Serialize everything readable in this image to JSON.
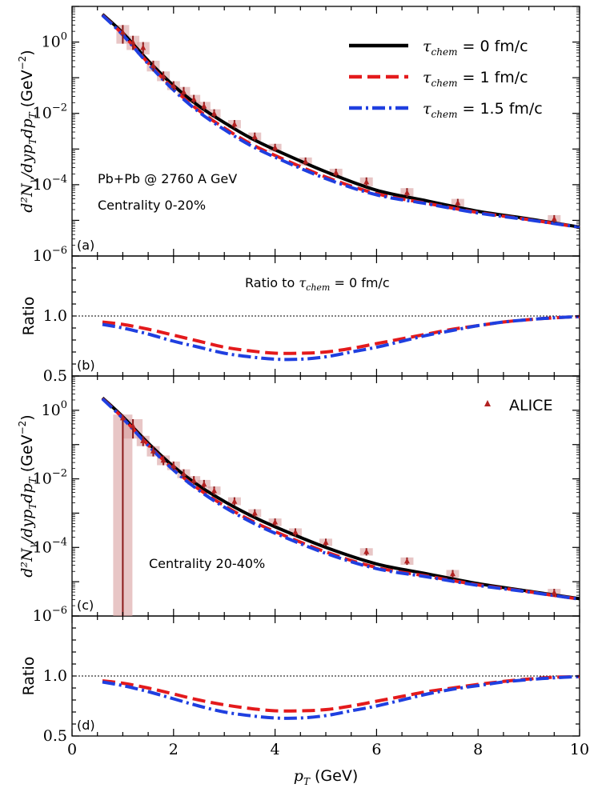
{
  "chart_data": [
    {
      "panel": "(a)",
      "type": "line",
      "yscale": "log",
      "xlim": [
        0,
        10
      ],
      "ylim_exp": [
        -6,
        1
      ],
      "ytick_labels": [
        "10^-6",
        "10^-4",
        "10^-2",
        "10^0"
      ],
      "ylabel": "d²N_γ/dy p_T dp_T (GeV⁻²)",
      "annotations": [
        "Pb+Pb @ 2760 A GeV",
        "Centrality 0-20%"
      ],
      "series": [
        {
          "name": "τchem = 0 fm/c",
          "color": "#000000",
          "style": "solid",
          "x": [
            0.6,
            1,
            1.5,
            2,
            2.5,
            3,
            3.5,
            4,
            5,
            6,
            7,
            8,
            9,
            10
          ],
          "y": [
            6.0,
            1.8,
            0.3,
            0.06,
            0.016,
            0.0055,
            0.0021,
            0.00095,
            0.00023,
            7e-05,
            3.5e-05,
            1.8e-05,
            1.1e-05,
            6.5e-06
          ]
        },
        {
          "name": "τchem = 1 fm/c",
          "color": "#e41a1c",
          "style": "dashed",
          "x": [
            0.6,
            1,
            1.5,
            2,
            2.5,
            3,
            3.5,
            4,
            5,
            6,
            7,
            8,
            9,
            10
          ],
          "y": [
            5.7,
            1.65,
            0.26,
            0.049,
            0.012,
            0.0039,
            0.00145,
            0.00066,
            0.000164,
            5.6e-05,
            3e-05,
            1.65e-05,
            1.05e-05,
            6.4e-06
          ]
        },
        {
          "name": "τchem = 1.5 fm/c",
          "color": "#1f3fe0",
          "style": "dashdot",
          "x": [
            0.6,
            1,
            1.5,
            2,
            2.5,
            3,
            3.5,
            4,
            5,
            6,
            7,
            8,
            9,
            10
          ],
          "y": [
            5.6,
            1.58,
            0.245,
            0.045,
            0.0109,
            0.0035,
            0.0013,
            0.00059,
            0.000148,
            5.2e-05,
            2.9e-05,
            1.6e-05,
            1.03e-05,
            6.4e-06
          ]
        }
      ],
      "points": [
        {
          "x": 1.0,
          "y": 1.9,
          "lo": 0.9,
          "hi": 3.0
        },
        {
          "x": 1.2,
          "y": 1.0,
          "lo": 0.6,
          "hi": 1.5
        },
        {
          "x": 1.4,
          "y": 0.7,
          "lo": 0.45,
          "hi": 1.0
        },
        {
          "x": 1.6,
          "y": 0.22,
          "lo": 0.15,
          "hi": 0.3
        },
        {
          "x": 1.8,
          "y": 0.11,
          "lo": 0.08,
          "hi": 0.15
        },
        {
          "x": 2.0,
          "y": 0.06,
          "lo": 0.045,
          "hi": 0.08
        },
        {
          "x": 2.2,
          "y": 0.04,
          "lo": 0.03,
          "hi": 0.055
        },
        {
          "x": 2.4,
          "y": 0.025,
          "lo": 0.019,
          "hi": 0.033
        },
        {
          "x": 2.6,
          "y": 0.016,
          "lo": 0.012,
          "hi": 0.021
        },
        {
          "x": 2.8,
          "y": 0.01,
          "lo": 0.0075,
          "hi": 0.013
        },
        {
          "x": 3.2,
          "y": 0.005,
          "lo": 0.0038,
          "hi": 0.0065
        },
        {
          "x": 3.6,
          "y": 0.0022,
          "lo": 0.0017,
          "hi": 0.0029
        },
        {
          "x": 4.0,
          "y": 0.0011,
          "lo": 0.00085,
          "hi": 0.0014
        },
        {
          "x": 4.6,
          "y": 0.00045,
          "lo": 0.00035,
          "hi": 0.00058
        },
        {
          "x": 5.2,
          "y": 0.00022,
          "lo": 0.00017,
          "hi": 0.00028
        },
        {
          "x": 5.8,
          "y": 0.00012,
          "lo": 9e-05,
          "hi": 0.00016
        },
        {
          "x": 6.6,
          "y": 6e-05,
          "lo": 4.5e-05,
          "hi": 8e-05
        },
        {
          "x": 7.6,
          "y": 3.1e-05,
          "lo": 2.4e-05,
          "hi": 4e-05
        },
        {
          "x": 9.5,
          "y": 1.1e-05,
          "lo": 8.5e-06,
          "hi": 1.4e-05
        }
      ]
    },
    {
      "panel": "(b)",
      "type": "line",
      "yscale": "linear",
      "xlim": [
        0,
        10
      ],
      "ylim": [
        0.5,
        1.5
      ],
      "ytick_labels": [
        "0.5",
        "1.0"
      ],
      "ylabel": "Ratio",
      "annotations": [
        "Ratio to τchem = 0 fm/c"
      ],
      "reference_line": 1.0,
      "series": [
        {
          "name": "τchem = 1 fm/c",
          "color": "#e41a1c",
          "style": "dashed",
          "x": [
            0.6,
            1,
            1.5,
            2,
            2.5,
            3,
            3.5,
            4,
            4.5,
            5,
            5.5,
            6,
            6.5,
            7,
            7.5,
            8,
            8.5,
            9,
            9.5,
            10
          ],
          "y": [
            0.95,
            0.93,
            0.89,
            0.84,
            0.79,
            0.74,
            0.71,
            0.69,
            0.69,
            0.7,
            0.73,
            0.77,
            0.81,
            0.85,
            0.89,
            0.92,
            0.95,
            0.97,
            0.985,
            0.995
          ]
        },
        {
          "name": "τchem = 1.5 fm/c",
          "color": "#1f3fe0",
          "style": "dashdot",
          "x": [
            0.6,
            1,
            1.5,
            2,
            2.5,
            3,
            3.5,
            4,
            4.5,
            5,
            5.5,
            6,
            6.5,
            7,
            7.5,
            8,
            8.5,
            9,
            9.5,
            10
          ],
          "y": [
            0.93,
            0.9,
            0.85,
            0.79,
            0.74,
            0.69,
            0.66,
            0.64,
            0.64,
            0.66,
            0.7,
            0.74,
            0.79,
            0.84,
            0.88,
            0.92,
            0.95,
            0.97,
            0.985,
            0.995
          ]
        }
      ]
    },
    {
      "panel": "(c)",
      "type": "line",
      "yscale": "log",
      "xlim": [
        0,
        10
      ],
      "ylim_exp": [
        -6,
        1
      ],
      "ytick_labels": [
        "10^-6",
        "10^-4",
        "10^-2",
        "10^0"
      ],
      "ylabel": "d²N_γ/dy p_T dp_T (GeV⁻²)",
      "annotations": [
        "Centrality 20-40%"
      ],
      "series": [
        {
          "name": "τchem = 0 fm/c",
          "color": "#000000",
          "style": "solid",
          "x": [
            0.6,
            1,
            1.5,
            2,
            2.5,
            3,
            3.5,
            4,
            5,
            6,
            7,
            8,
            9,
            10
          ],
          "y": [
            2.3,
            0.65,
            0.11,
            0.023,
            0.0063,
            0.0022,
            0.00088,
            0.0004,
            0.0001,
            3.3e-05,
            1.7e-05,
            8.8e-06,
            5.3e-06,
            3.2e-06
          ]
        },
        {
          "name": "τchem = 1 fm/c",
          "color": "#e41a1c",
          "style": "dashed",
          "x": [
            0.6,
            1,
            1.5,
            2,
            2.5,
            3,
            3.5,
            4,
            5,
            6,
            7,
            8,
            9,
            10
          ],
          "y": [
            2.2,
            0.6,
            0.098,
            0.019,
            0.005,
            0.00165,
            0.00064,
            0.00029,
            7.4e-05,
            2.6e-05,
            1.45e-05,
            8.1e-06,
            5.1e-06,
            3.1e-06
          ]
        },
        {
          "name": "τchem = 1.5 fm/c",
          "color": "#1f3fe0",
          "style": "dashdot",
          "x": [
            0.6,
            1,
            1.5,
            2,
            2.5,
            3,
            3.5,
            4,
            5,
            6,
            7,
            8,
            9,
            10
          ],
          "y": [
            2.15,
            0.58,
            0.094,
            0.018,
            0.0046,
            0.0015,
            0.00058,
            0.00026,
            6.7e-05,
            2.4e-05,
            1.38e-05,
            7.8e-06,
            5e-06,
            3.1e-06
          ]
        }
      ],
      "legend_marker": "ALICE",
      "points": [
        {
          "x": 1.0,
          "y": 0.6,
          "lo": 5e-07,
          "hi": 0.75
        },
        {
          "x": 1.2,
          "y": 0.35,
          "lo": 0.15,
          "hi": 0.55
        },
        {
          "x": 1.4,
          "y": 0.13,
          "lo": 0.09,
          "hi": 0.18
        },
        {
          "x": 1.6,
          "y": 0.065,
          "lo": 0.045,
          "hi": 0.09
        },
        {
          "x": 1.8,
          "y": 0.035,
          "lo": 0.025,
          "hi": 0.048
        },
        {
          "x": 2.0,
          "y": 0.024,
          "lo": 0.018,
          "hi": 0.032
        },
        {
          "x": 2.2,
          "y": 0.014,
          "lo": 0.0105,
          "hi": 0.019
        },
        {
          "x": 2.4,
          "y": 0.009,
          "lo": 0.0068,
          "hi": 0.012
        },
        {
          "x": 2.6,
          "y": 0.007,
          "lo": 0.0053,
          "hi": 0.0093
        },
        {
          "x": 2.8,
          "y": 0.0045,
          "lo": 0.0034,
          "hi": 0.006
        },
        {
          "x": 3.2,
          "y": 0.0022,
          "lo": 0.0017,
          "hi": 0.0029
        },
        {
          "x": 3.6,
          "y": 0.001,
          "lo": 0.00077,
          "hi": 0.0013
        },
        {
          "x": 4.0,
          "y": 0.00055,
          "lo": 0.00042,
          "hi": 0.0007
        },
        {
          "x": 4.4,
          "y": 0.00028,
          "lo": 0.00021,
          "hi": 0.00036
        },
        {
          "x": 5.0,
          "y": 0.00014,
          "lo": 0.00011,
          "hi": 0.00018
        },
        {
          "x": 5.8,
          "y": 7.5e-05,
          "lo": 5.8e-05,
          "hi": 9.5e-05
        },
        {
          "x": 6.6,
          "y": 4e-05,
          "lo": 3.1e-05,
          "hi": 5.1e-05
        },
        {
          "x": 7.5,
          "y": 1.7e-05,
          "lo": 1.3e-05,
          "hi": 2.2e-05
        },
        {
          "x": 9.5,
          "y": 4.8e-06,
          "lo": 3.7e-06,
          "hi": 6.2e-06
        }
      ]
    },
    {
      "panel": "(d)",
      "type": "line",
      "yscale": "linear",
      "xlim": [
        0,
        10
      ],
      "ylim": [
        0.5,
        1.5
      ],
      "ytick_labels": [
        "0.5",
        "1.0"
      ],
      "ylabel": "Ratio",
      "reference_line": 1.0,
      "xlabel": "p_T (GeV)",
      "xtick_labels": [
        "0",
        "2",
        "4",
        "6",
        "8",
        "10"
      ],
      "series": [
        {
          "name": "τchem = 1 fm/c",
          "color": "#e41a1c",
          "style": "dashed",
          "x": [
            0.6,
            1,
            1.5,
            2,
            2.5,
            3,
            3.5,
            4,
            4.5,
            5,
            5.5,
            6,
            6.5,
            7,
            7.5,
            8,
            8.5,
            9,
            9.5,
            10
          ],
          "y": [
            0.96,
            0.94,
            0.9,
            0.85,
            0.8,
            0.76,
            0.73,
            0.71,
            0.71,
            0.72,
            0.75,
            0.79,
            0.83,
            0.87,
            0.9,
            0.93,
            0.955,
            0.975,
            0.99,
            0.995
          ]
        },
        {
          "name": "τchem = 1.5 fm/c",
          "color": "#1f3fe0",
          "style": "dashdot",
          "x": [
            0.6,
            1,
            1.5,
            2,
            2.5,
            3,
            3.5,
            4,
            4.5,
            5,
            5.5,
            6,
            6.5,
            7,
            7.5,
            8,
            8.5,
            9,
            9.5,
            10
          ],
          "y": [
            0.95,
            0.92,
            0.87,
            0.81,
            0.75,
            0.7,
            0.67,
            0.65,
            0.65,
            0.67,
            0.71,
            0.75,
            0.8,
            0.85,
            0.89,
            0.92,
            0.95,
            0.97,
            0.985,
            0.995
          ]
        }
      ]
    }
  ],
  "legend": {
    "entries": [
      {
        "label_math": "τ",
        "label_sub": "chem",
        "label_rest": " = 0 fm/c",
        "color": "#000000",
        "style": "solid"
      },
      {
        "label_math": "τ",
        "label_sub": "chem",
        "label_rest": " = 1 fm/c",
        "color": "#e41a1c",
        "style": "dashed"
      },
      {
        "label_math": "τ",
        "label_sub": "chem",
        "label_rest": " = 1.5 fm/c",
        "color": "#1f3fe0",
        "style": "dashdot"
      }
    ]
  },
  "labels": {
    "panel_a": "(a)",
    "panel_b": "(b)",
    "panel_c": "(c)",
    "panel_d": "(d)",
    "collision": "Pb+Pb @ 2760 A GeV",
    "centrality_a": "Centrality 0-20%",
    "centrality_c": "Centrality 20-40%",
    "ratio_title_pre": "Ratio to ",
    "ratio_title_math": "τ",
    "ratio_title_sub": "chem",
    "ratio_title_post": " = 0 fm/c",
    "ratio_ylabel": "Ratio",
    "alice": "ALICE",
    "xlabel_math": "p",
    "xlabel_sub": "T",
    "xlabel_unit": " (GeV)",
    "spectrum_ylabel_math": "d²N",
    "spectrum_ylabel_sub": "γ",
    "spectrum_ylabel_rest": "/dyp",
    "spectrum_ylabel_sub2": "T",
    "spectrum_ylabel_rest2": "dp",
    "spectrum_ylabel_sub3": "T",
    "spectrum_ylabel_unit": " (GeV",
    "spectrum_ylabel_exp": "−2",
    "spectrum_ylabel_close": ")"
  }
}
